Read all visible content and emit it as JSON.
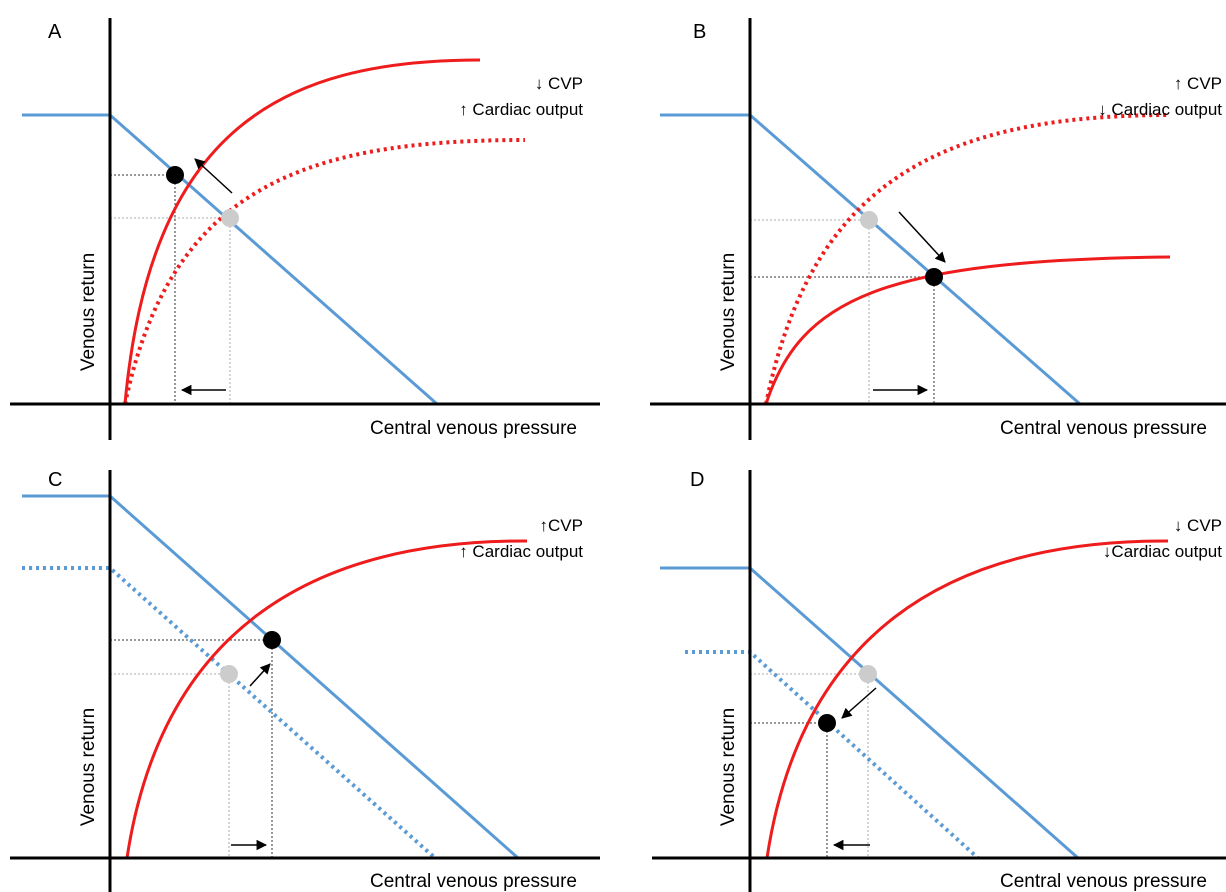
{
  "colors": {
    "venous_return_curve": "#5b9bd5",
    "cardiac_function_curve": "#ee1c1c",
    "new_equilibrium": "#000000",
    "old_equilibrium": "#cccccc",
    "axes": "#000000",
    "guides": "#555555"
  },
  "panels": [
    {
      "label": "A",
      "xlabel": "Central venous pressure",
      "ylabel": "Venous return",
      "cvp_note": "↓ CVP",
      "co_note": "↑ Cardiac output"
    },
    {
      "label": "B",
      "xlabel": "Central venous pressure",
      "ylabel": "Venous return",
      "cvp_note": "↑ CVP",
      "co_note": "↓ Cardiac output"
    },
    {
      "label": "C",
      "xlabel": "Central venous pressure",
      "ylabel": "Venous return",
      "cvp_note": "↑CVP",
      "co_note": "↑ Cardiac output"
    },
    {
      "label": "D",
      "xlabel": "Central venous pressure",
      "ylabel": "Venous return",
      "cvp_note": "↓ CVP",
      "co_note": "↓Cardiac output"
    }
  ]
}
